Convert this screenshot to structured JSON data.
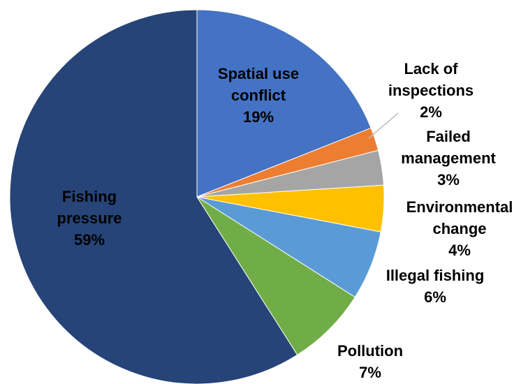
{
  "chart_data": {
    "type": "pie",
    "title": "",
    "start_angle_deg": 0,
    "direction": "clockwise",
    "slices": [
      {
        "label_lines": [
          "Spatial use",
          "conflict"
        ],
        "value": 19,
        "pct_label": "19%",
        "color": "#4472C4",
        "text_color": "#000000"
      },
      {
        "label_lines": [
          "Lack of",
          "inspections"
        ],
        "value": 2,
        "pct_label": "2%",
        "color": "#ED7D31",
        "text_color": "#000000"
      },
      {
        "label_lines": [
          "Failed",
          "management"
        ],
        "value": 3,
        "pct_label": "3%",
        "color": "#A5A5A5",
        "text_color": "#000000"
      },
      {
        "label_lines": [
          "Environmental",
          "change"
        ],
        "value": 4,
        "pct_label": "4%",
        "color": "#FFC000",
        "text_color": "#000000"
      },
      {
        "label_lines": [
          "Illegal fishing"
        ],
        "value": 6,
        "pct_label": "6%",
        "color": "#5B9BD5",
        "text_color": "#000000"
      },
      {
        "label_lines": [
          "Pollution"
        ],
        "value": 7,
        "pct_label": "7%",
        "color": "#70AD47",
        "text_color": "#000000"
      },
      {
        "label_lines": [
          "Fishing",
          "pressure"
        ],
        "value": 59,
        "pct_label": "59%",
        "color": "#264478",
        "text_color": "#000000"
      }
    ]
  }
}
